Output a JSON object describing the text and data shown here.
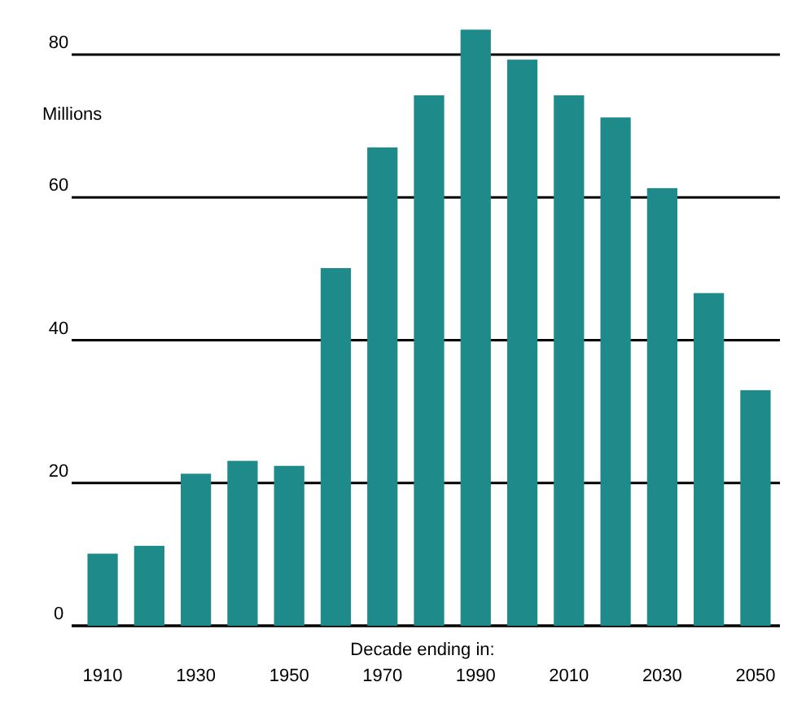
{
  "chart_data": {
    "type": "bar",
    "ylabel": "Millions",
    "xlabel": "Decade ending in:",
    "categories": [
      "1910",
      null,
      "1930",
      null,
      "1950",
      null,
      "1970",
      null,
      "1990",
      null,
      "2010",
      null,
      "2030",
      null,
      "2050"
    ],
    "values": [
      10.1,
      11.2,
      21.3,
      23.1,
      22.4,
      50.1,
      67,
      74.3,
      83.5,
      79.3,
      74.3,
      71.2,
      61.3,
      46.6,
      33
    ],
    "color": "#1f8a8a",
    "ylim": [
      0,
      84
    ],
    "yticks": [
      0,
      20,
      40,
      60,
      80
    ],
    "grid": "y"
  }
}
